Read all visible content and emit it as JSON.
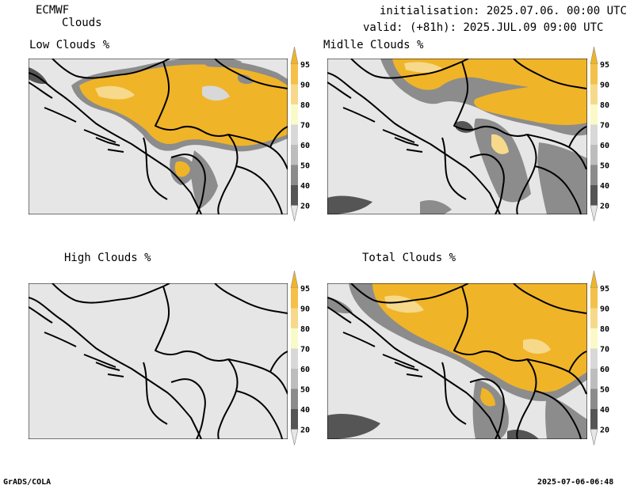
{
  "header": {
    "model": "ECMWF",
    "product": "Clouds",
    "init_label": "initialisation:",
    "init_value": "2025.07.06. 00:00 UTC",
    "valid_label": "valid: (+81h):",
    "valid_value": "2025.JUL.09 09:00 UTC"
  },
  "panels": [
    {
      "title": "Low Clouds %"
    },
    {
      "title": "Midlle Clouds %"
    },
    {
      "title": "High Clouds %"
    },
    {
      "title": "Total Clouds %"
    }
  ],
  "colorbar": {
    "levels": [
      "95",
      "90",
      "80",
      "70",
      "60",
      "50",
      "40",
      "20"
    ],
    "colors": {
      "95": "#f0b429",
      "90": "#f4c04a",
      "80": "#f6d98a",
      "70": "#fafac8",
      "60": "#d8d8d8",
      "50": "#bdbdbd",
      "40": "#8c8c8c",
      "20": "#555555",
      "below": "#e6e6e6"
    }
  },
  "footer": {
    "left": "GrADS/COLA",
    "right": "2025-07-06-06:48"
  }
}
